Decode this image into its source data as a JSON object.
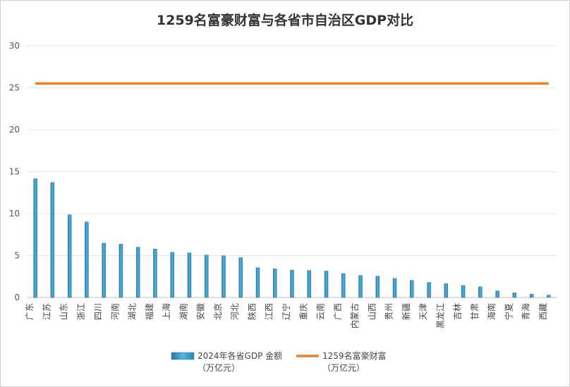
{
  "chart_data": {
    "type": "bar+line",
    "title": "1259名富豪财富与各省市自治区GDP对比",
    "xlabel": "",
    "ylabel": "",
    "ylim": [
      0,
      30
    ],
    "yticks": [
      0,
      5,
      10,
      15,
      20,
      25,
      30
    ],
    "grid": true,
    "legend_position": "bottom",
    "categories": [
      "广东",
      "江苏",
      "山东",
      "浙江",
      "四川",
      "河南",
      "湖北",
      "福建",
      "上海",
      "湖南",
      "安徽",
      "北京",
      "河北",
      "陕西",
      "江西",
      "辽宁",
      "重庆",
      "云南",
      "广西",
      "内蒙古",
      "山西",
      "贵州",
      "新疆",
      "天津",
      "黑龙江",
      "吉林",
      "甘肃",
      "海南",
      "宁夏",
      "青海",
      "西藏"
    ],
    "series": [
      {
        "name": "2024年各省GDP 金额（万亿元）",
        "legend_lines": [
          "2024年各省GDP 金额",
          "（万亿元）"
        ],
        "type": "bar",
        "color": "#3a9bc9",
        "values": [
          14.16,
          13.7,
          9.86,
          9.01,
          6.47,
          6.36,
          6.0,
          5.78,
          5.39,
          5.32,
          5.06,
          4.98,
          4.75,
          3.55,
          3.42,
          3.26,
          3.22,
          3.15,
          2.86,
          2.63,
          2.55,
          2.27,
          2.05,
          1.8,
          1.65,
          1.44,
          1.28,
          0.79,
          0.55,
          0.4,
          0.28
        ]
      },
      {
        "name": "1259名富豪财富（万亿元）",
        "legend_lines": [
          "1259名富豪财富",
          "（万亿元）"
        ],
        "type": "line",
        "color": "#f07f23",
        "value": 25.5
      }
    ]
  }
}
